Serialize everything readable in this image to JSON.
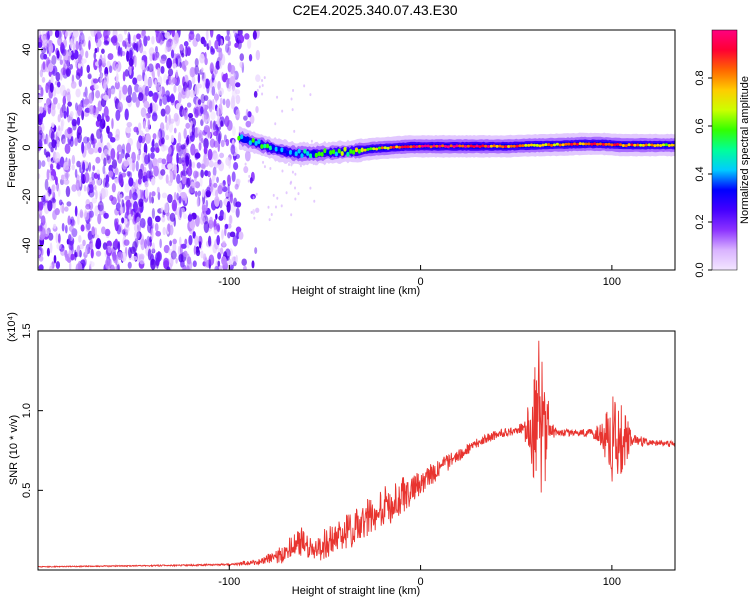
{
  "title": "C2E4.2025.340.07.43.E30",
  "chart_data": [
    {
      "type": "heatmap",
      "xlabel": "Height of straight line (km)",
      "ylabel": "Frequency (Hz)",
      "xlim": [
        -200,
        133
      ],
      "ylim": [
        -50,
        48
      ],
      "xticks": [
        {
          "value": -100,
          "label": "-100"
        },
        {
          "value": 0,
          "label": "0"
        },
        {
          "value": 100,
          "label": "100"
        }
      ],
      "yticks": [
        {
          "value": -40,
          "label": "-40"
        },
        {
          "value": -20,
          "label": "-20"
        },
        {
          "value": 0,
          "label": "0"
        },
        {
          "value": 20,
          "label": "20"
        },
        {
          "value": 40,
          "label": "40"
        }
      ],
      "colorbar": {
        "label": "Normalized spectral amplitude",
        "range": [
          0,
          1
        ],
        "ticks": [
          {
            "value": 0.0,
            "label": "0.0"
          },
          {
            "value": 0.2,
            "label": "0.2"
          },
          {
            "value": 0.4,
            "label": "0.4"
          },
          {
            "value": 0.6,
            "label": "0.6"
          },
          {
            "value": 0.8,
            "label": "0.8"
          }
        ],
        "colormap": [
          "#f3e6ff",
          "#d9b3ff",
          "#8c33ff",
          "#4400ff",
          "#0000ff",
          "#00ccff",
          "#00ff99",
          "#33ff00",
          "#ccff00",
          "#ffcc00",
          "#ff6600",
          "#ff0033",
          "#ff0080"
        ]
      },
      "noise_region_x": [
        -200,
        -95
      ],
      "ridge": {
        "x": [
          -95,
          -85,
          -75,
          -65,
          -55,
          -45,
          -35,
          -25,
          -15,
          -5,
          5,
          15,
          25,
          35,
          45,
          55,
          65,
          75,
          85,
          95,
          105,
          115,
          133
        ],
        "freq": [
          4,
          1.5,
          -1,
          -2.5,
          -2.5,
          -2,
          -1.5,
          -0.5,
          0,
          0.5,
          0.5,
          0.5,
          0.5,
          0.5,
          0.5,
          0.8,
          1,
          1.2,
          1.5,
          1.5,
          1,
          1,
          1
        ],
        "amplitude": [
          0.45,
          0.5,
          0.45,
          0.4,
          0.45,
          0.5,
          0.6,
          0.7,
          0.8,
          0.9,
          0.95,
          0.95,
          0.9,
          0.9,
          0.85,
          0.8,
          0.75,
          0.8,
          0.85,
          0.9,
          0.8,
          0.75,
          0.7
        ]
      }
    },
    {
      "type": "line",
      "xlabel": "Height of straight line (km)",
      "ylabel": "SNR (10 * v/v)",
      "multiplier_label": "(x10⁴)",
      "xlim": [
        -200,
        133
      ],
      "ylim": [
        0,
        1.5
      ],
      "xticks": [
        {
          "value": -100,
          "label": "-100"
        },
        {
          "value": 0,
          "label": "0"
        },
        {
          "value": 100,
          "label": "100"
        }
      ],
      "yticks": [
        {
          "value": 0.5,
          "label": "0.5"
        },
        {
          "value": 1.0,
          "label": "1.0"
        },
        {
          "value": 1.5,
          "label": "1.5"
        }
      ],
      "series": [
        {
          "name": "SNR",
          "color": "#e8342f",
          "x": [
            -200,
            -160,
            -120,
            -100,
            -85,
            -75,
            -70,
            -62,
            -55,
            -50,
            -40,
            -30,
            -20,
            -10,
            0,
            10,
            20,
            30,
            40,
            50,
            55,
            58,
            60,
            62,
            64,
            66,
            68,
            72,
            80,
            90,
            95,
            100,
            105,
            110,
            120,
            133
          ],
          "y": [
            0.02,
            0.025,
            0.03,
            0.035,
            0.05,
            0.08,
            0.12,
            0.18,
            0.12,
            0.16,
            0.24,
            0.3,
            0.38,
            0.46,
            0.55,
            0.64,
            0.72,
            0.8,
            0.85,
            0.88,
            0.88,
            0.9,
            0.88,
            0.88,
            0.88,
            0.9,
            0.88,
            0.86,
            0.86,
            0.86,
            0.85,
            0.84,
            0.84,
            0.82,
            0.8,
            0.79
          ],
          "noise": [
            0.003,
            0.004,
            0.005,
            0.006,
            0.02,
            0.05,
            0.07,
            0.1,
            0.06,
            0.1,
            0.12,
            0.14,
            0.14,
            0.12,
            0.08,
            0.06,
            0.04,
            0.03,
            0.03,
            0.03,
            0.08,
            0.25,
            0.5,
            0.6,
            0.5,
            0.25,
            0.06,
            0.03,
            0.02,
            0.03,
            0.1,
            0.3,
            0.25,
            0.06,
            0.02,
            0.02
          ]
        }
      ]
    }
  ]
}
